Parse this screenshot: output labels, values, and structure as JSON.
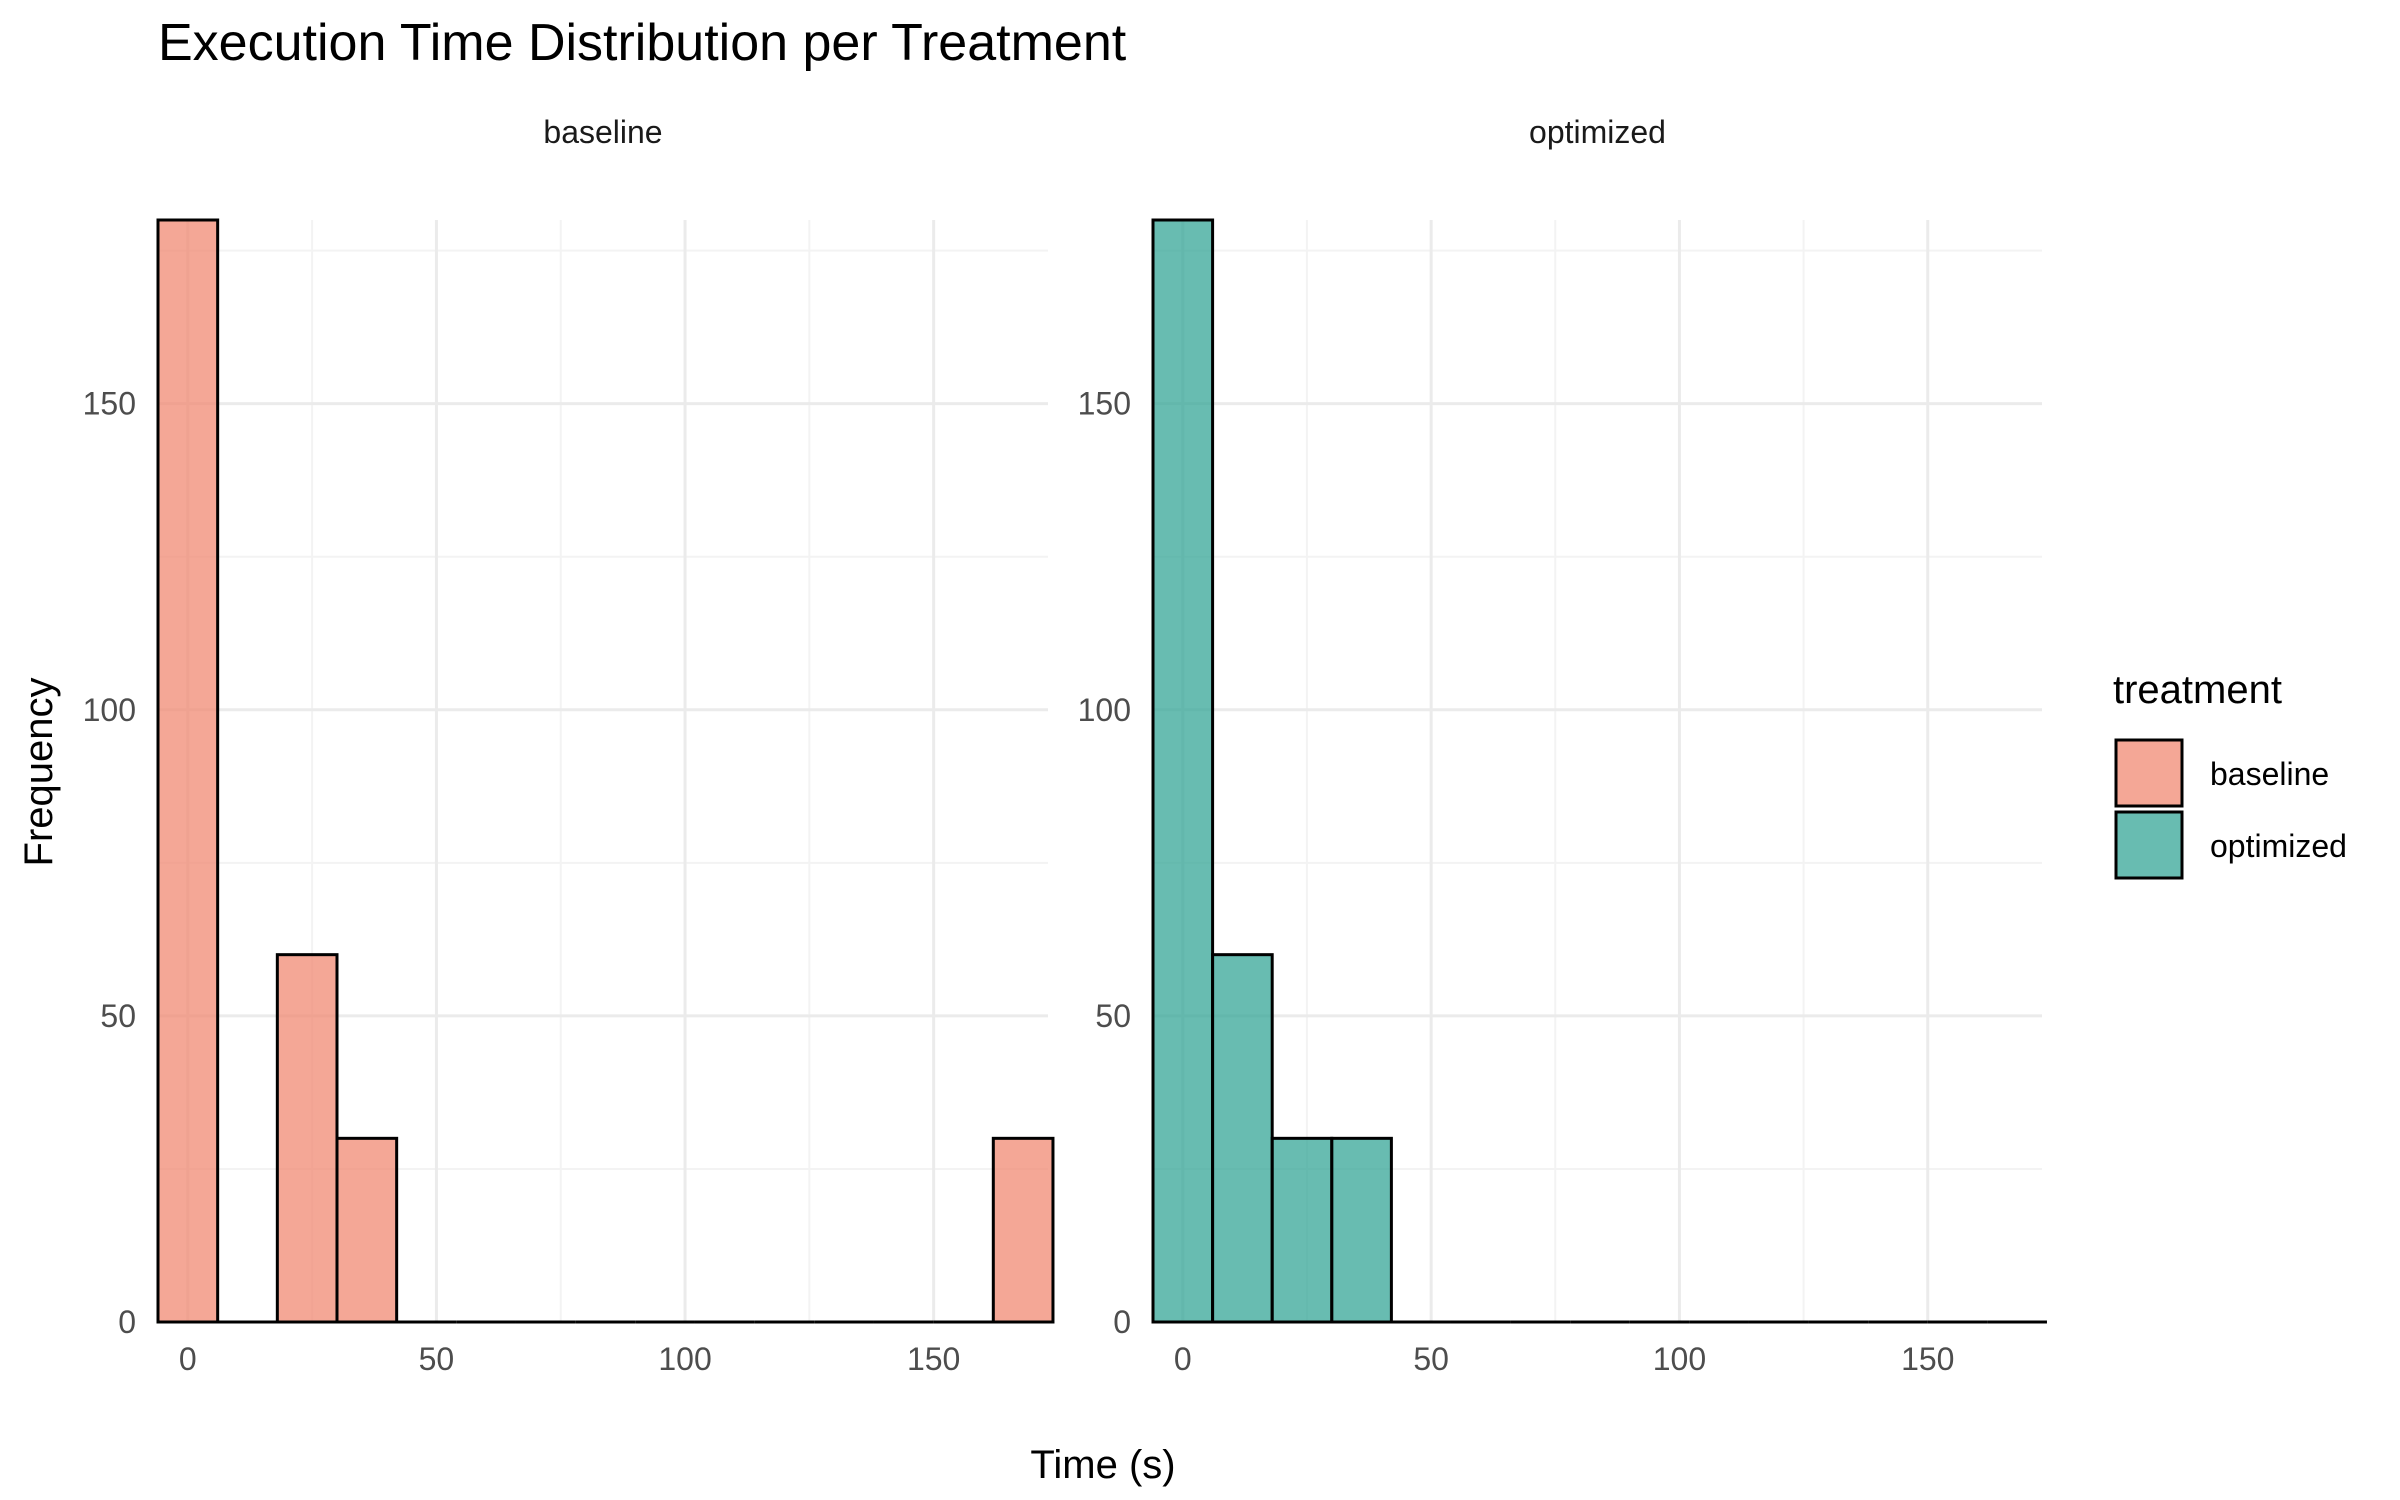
{
  "chart_data": {
    "type": "bar",
    "chart_kind": "faceted histogram",
    "title": "Execution Time Distribution per Treatment",
    "xlabel": "Time (s)",
    "ylabel": "Frequency",
    "xlim": [
      -6,
      173
    ],
    "ylim": [
      0,
      180
    ],
    "x_ticks": [
      0,
      50,
      100,
      150
    ],
    "y_ticks": [
      0,
      50,
      100,
      150
    ],
    "bin_width": 12,
    "grid": true,
    "legend": {
      "title": "treatment",
      "placement": "right",
      "entries": [
        {
          "label": "baseline",
          "color": "#F08A73"
        },
        {
          "label": "optimized",
          "color": "#35A597"
        }
      ]
    },
    "facets": [
      {
        "name": "baseline",
        "color": "#F08A73",
        "bins": [
          {
            "x0": -6,
            "x1": 6,
            "count": 180
          },
          {
            "x0": 6,
            "x1": 18,
            "count": 0
          },
          {
            "x0": 18,
            "x1": 30,
            "count": 60
          },
          {
            "x0": 30,
            "x1": 42,
            "count": 30
          },
          {
            "x0": 42,
            "x1": 54,
            "count": 0
          },
          {
            "x0": 54,
            "x1": 66,
            "count": 0
          },
          {
            "x0": 66,
            "x1": 78,
            "count": 0
          },
          {
            "x0": 78,
            "x1": 90,
            "count": 0
          },
          {
            "x0": 90,
            "x1": 102,
            "count": 0
          },
          {
            "x0": 102,
            "x1": 114,
            "count": 0
          },
          {
            "x0": 114,
            "x1": 126,
            "count": 0
          },
          {
            "x0": 126,
            "x1": 138,
            "count": 0
          },
          {
            "x0": 138,
            "x1": 150,
            "count": 0
          },
          {
            "x0": 150,
            "x1": 162,
            "count": 0
          },
          {
            "x0": 162,
            "x1": 174,
            "count": 30
          }
        ]
      },
      {
        "name": "optimized",
        "color": "#35A597",
        "bins": [
          {
            "x0": -6,
            "x1": 6,
            "count": 180
          },
          {
            "x0": 6,
            "x1": 18,
            "count": 60
          },
          {
            "x0": 18,
            "x1": 30,
            "count": 30
          },
          {
            "x0": 30,
            "x1": 42,
            "count": 30
          },
          {
            "x0": 42,
            "x1": 54,
            "count": 0
          },
          {
            "x0": 54,
            "x1": 66,
            "count": 0
          },
          {
            "x0": 66,
            "x1": 78,
            "count": 0
          },
          {
            "x0": 78,
            "x1": 90,
            "count": 0
          },
          {
            "x0": 90,
            "x1": 102,
            "count": 0
          },
          {
            "x0": 102,
            "x1": 114,
            "count": 0
          },
          {
            "x0": 114,
            "x1": 126,
            "count": 0
          },
          {
            "x0": 126,
            "x1": 138,
            "count": 0
          },
          {
            "x0": 138,
            "x1": 150,
            "count": 0
          },
          {
            "x0": 150,
            "x1": 162,
            "count": 0
          },
          {
            "x0": 162,
            "x1": 174,
            "count": 0
          }
        ]
      }
    ]
  }
}
